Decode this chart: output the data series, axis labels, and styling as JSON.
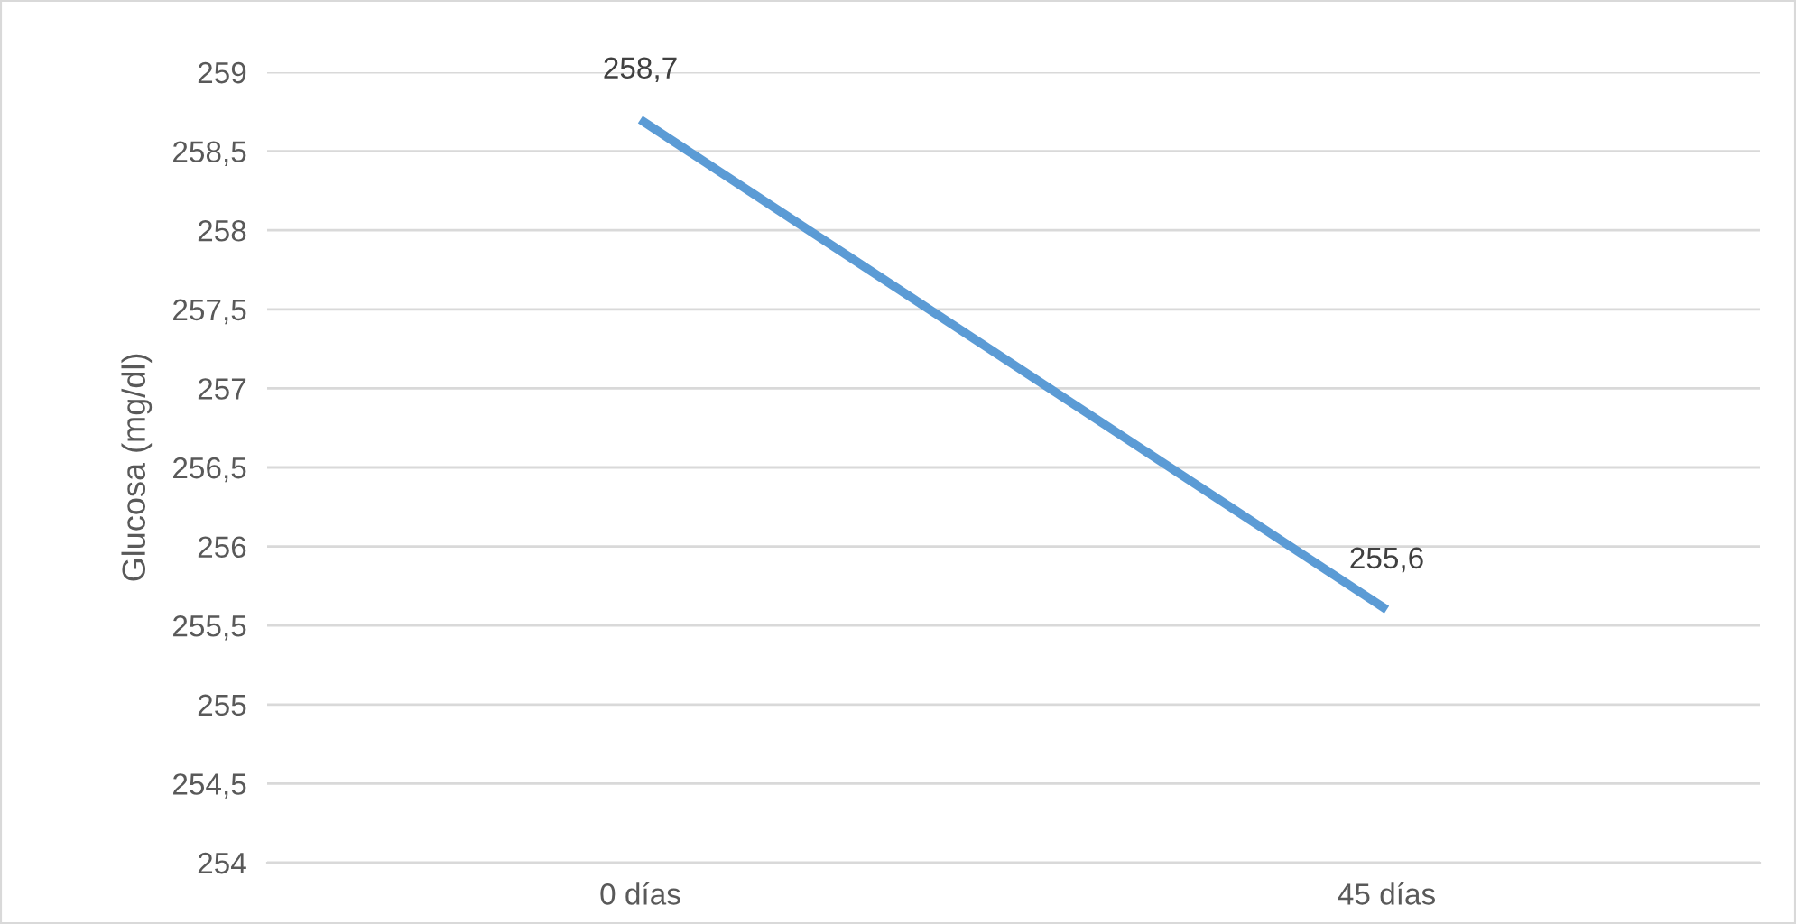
{
  "chart_data": {
    "type": "line",
    "ylabel": "Glucosa (mg/dl)",
    "categories": [
      "0 días",
      "45 días"
    ],
    "series": [
      {
        "color": "#5b9bd5",
        "values": [
          258.7,
          255.6
        ],
        "value_labels": [
          "258,7",
          "255,6"
        ]
      }
    ],
    "ylim": [
      254,
      259
    ],
    "yticks": [
      254,
      {
        "value": 254.5,
        "label": "254,5"
      },
      255,
      {
        "value": 255.5,
        "label": "255,5"
      },
      256,
      {
        "value": 256.5,
        "label": "256,5"
      },
      257,
      {
        "value": 257.5,
        "label": "257,5"
      },
      258,
      {
        "value": 258.5,
        "label": "258,5"
      },
      259
    ],
    "grid": "y",
    "marker": "none",
    "line_style": "solid"
  }
}
